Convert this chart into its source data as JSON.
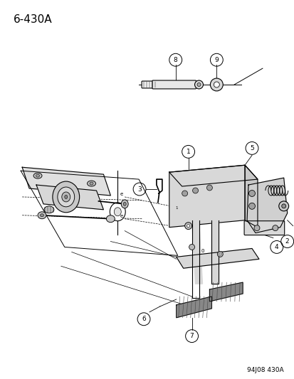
{
  "title": "6-430A",
  "footer": "94J08 430A",
  "bg_color": "#ffffff",
  "title_fontsize": 11,
  "footer_fontsize": 6.5,
  "fig_width": 4.14,
  "fig_height": 5.33,
  "dpi": 100
}
